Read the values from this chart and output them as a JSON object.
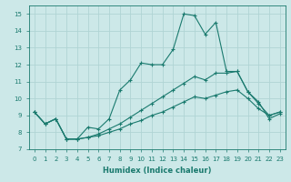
{
  "xlabel": "Humidex (Indice chaleur)",
  "xlim": [
    -0.5,
    23.5
  ],
  "ylim": [
    7,
    15.5
  ],
  "yticks": [
    7,
    8,
    9,
    10,
    11,
    12,
    13,
    14,
    15
  ],
  "xticks": [
    0,
    1,
    2,
    3,
    4,
    5,
    6,
    7,
    8,
    9,
    10,
    11,
    12,
    13,
    14,
    15,
    16,
    17,
    18,
    19,
    20,
    21,
    22,
    23
  ],
  "bg_color": "#cce8e8",
  "grid_color": "#b0d4d4",
  "line_color": "#1a7a6e",
  "lines": [
    {
      "x": [
        0,
        1,
        2,
        3,
        4,
        5,
        6,
        7,
        8,
        9,
        10,
        11,
        12,
        13,
        14,
        15,
        16,
        17,
        18,
        19,
        20,
        21,
        22,
        23
      ],
      "y": [
        9.2,
        8.5,
        8.8,
        7.6,
        7.6,
        8.3,
        8.2,
        8.8,
        10.5,
        11.1,
        12.1,
        12.0,
        12.0,
        12.9,
        15.0,
        14.9,
        13.8,
        14.5,
        11.6,
        11.6,
        10.4,
        9.8,
        8.8,
        9.1
      ]
    },
    {
      "x": [
        0,
        1,
        2,
        3,
        4,
        5,
        6,
        7,
        8,
        9,
        10,
        11,
        12,
        13,
        14,
        15,
        16,
        17,
        18,
        19,
        20,
        21,
        22,
        23
      ],
      "y": [
        9.2,
        8.5,
        8.8,
        7.6,
        7.6,
        7.7,
        7.9,
        8.2,
        8.5,
        8.9,
        9.3,
        9.7,
        10.1,
        10.5,
        10.9,
        11.3,
        11.1,
        11.5,
        11.5,
        11.6,
        10.4,
        9.7,
        9.0,
        9.2
      ]
    },
    {
      "x": [
        0,
        1,
        2,
        3,
        4,
        5,
        6,
        7,
        8,
        9,
        10,
        11,
        12,
        13,
        14,
        15,
        16,
        17,
        18,
        19,
        20,
        21,
        22,
        23
      ],
      "y": [
        9.2,
        8.5,
        8.8,
        7.6,
        7.6,
        7.7,
        7.8,
        8.0,
        8.2,
        8.5,
        8.7,
        9.0,
        9.2,
        9.5,
        9.8,
        10.1,
        10.0,
        10.2,
        10.4,
        10.5,
        10.0,
        9.4,
        9.0,
        9.2
      ]
    }
  ]
}
